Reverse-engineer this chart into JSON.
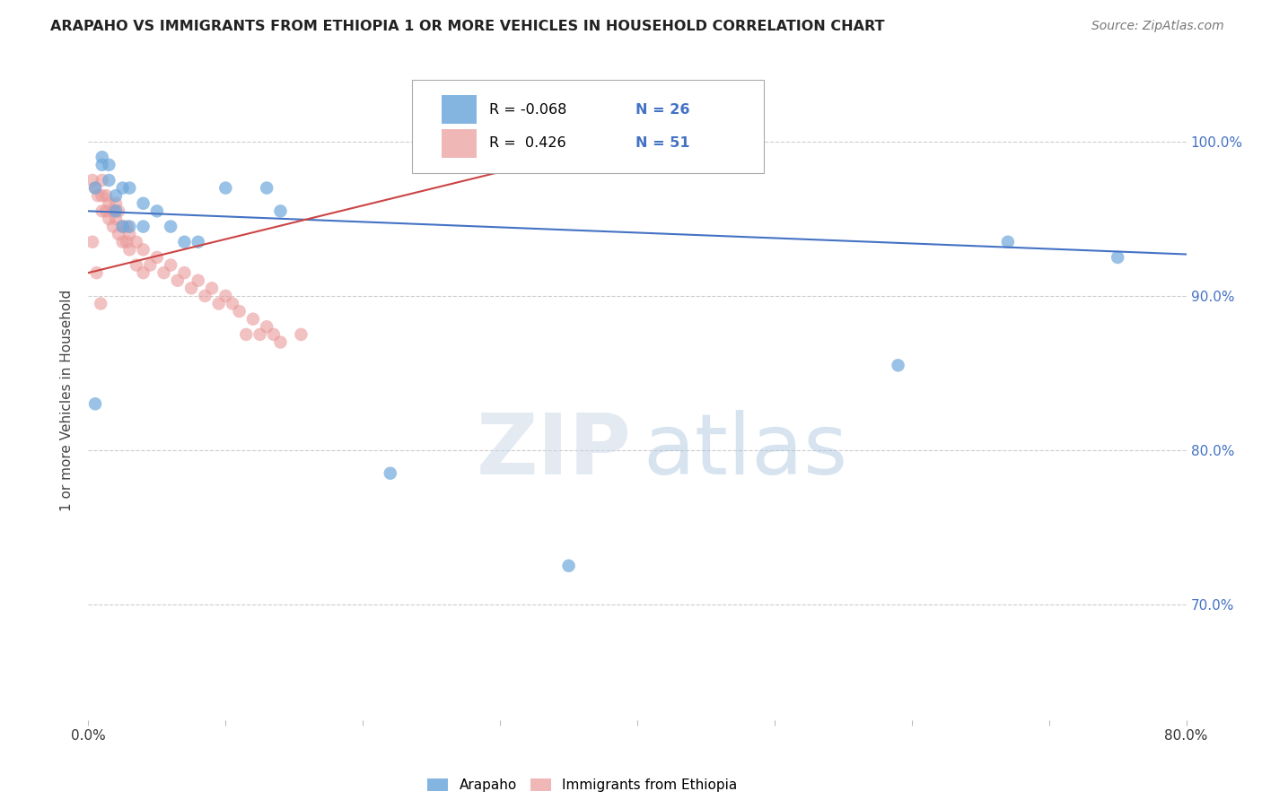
{
  "title": "ARAPAHO VS IMMIGRANTS FROM ETHIOPIA 1 OR MORE VEHICLES IN HOUSEHOLD CORRELATION CHART",
  "source": "Source: ZipAtlas.com",
  "ylabel": "1 or more Vehicles in Household",
  "xlim": [
    0.0,
    0.8
  ],
  "ylim": [
    0.625,
    1.04
  ],
  "ytick_labels": [
    "70.0%",
    "80.0%",
    "90.0%",
    "100.0%"
  ],
  "ytick_vals": [
    0.7,
    0.8,
    0.9,
    1.0
  ],
  "xtick_vals": [
    0.0,
    0.1,
    0.2,
    0.3,
    0.4,
    0.5,
    0.6,
    0.7,
    0.8
  ],
  "legend_labels": [
    "Arapaho",
    "Immigrants from Ethiopia"
  ],
  "R_blue": -0.068,
  "N_blue": 26,
  "R_pink": 0.426,
  "N_pink": 51,
  "blue_color": "#6fa8dc",
  "pink_color": "#ea9999",
  "blue_line_color": "#4472c4",
  "pink_line_color": "#cc4444",
  "blue_scatter_x": [
    0.005,
    0.01,
    0.01,
    0.015,
    0.015,
    0.02,
    0.02,
    0.025,
    0.025,
    0.03,
    0.03,
    0.04,
    0.04,
    0.05,
    0.06,
    0.07,
    0.08,
    0.1,
    0.13,
    0.14,
    0.22,
    0.35,
    0.59,
    0.67,
    0.75,
    0.005
  ],
  "blue_scatter_y": [
    0.97,
    0.99,
    0.985,
    0.985,
    0.975,
    0.965,
    0.955,
    0.97,
    0.945,
    0.97,
    0.945,
    0.96,
    0.945,
    0.955,
    0.945,
    0.935,
    0.935,
    0.97,
    0.97,
    0.955,
    0.785,
    0.725,
    0.855,
    0.935,
    0.925,
    0.83
  ],
  "pink_scatter_x": [
    0.003,
    0.005,
    0.007,
    0.01,
    0.01,
    0.01,
    0.013,
    0.013,
    0.015,
    0.015,
    0.018,
    0.018,
    0.02,
    0.02,
    0.022,
    0.022,
    0.025,
    0.025,
    0.028,
    0.028,
    0.03,
    0.03,
    0.035,
    0.035,
    0.04,
    0.04,
    0.045,
    0.05,
    0.055,
    0.06,
    0.065,
    0.07,
    0.075,
    0.08,
    0.085,
    0.09,
    0.095,
    0.1,
    0.105,
    0.11,
    0.115,
    0.12,
    0.125,
    0.13,
    0.135,
    0.14,
    0.155,
    0.39,
    0.003,
    0.006,
    0.009
  ],
  "pink_scatter_y": [
    0.975,
    0.97,
    0.965,
    0.975,
    0.965,
    0.955,
    0.965,
    0.955,
    0.96,
    0.95,
    0.955,
    0.945,
    0.96,
    0.95,
    0.955,
    0.94,
    0.945,
    0.935,
    0.945,
    0.935,
    0.94,
    0.93,
    0.935,
    0.92,
    0.93,
    0.915,
    0.92,
    0.925,
    0.915,
    0.92,
    0.91,
    0.915,
    0.905,
    0.91,
    0.9,
    0.905,
    0.895,
    0.9,
    0.895,
    0.89,
    0.875,
    0.885,
    0.875,
    0.88,
    0.875,
    0.87,
    0.875,
    1.0,
    0.935,
    0.915,
    0.895
  ],
  "blue_line_x": [
    0.0,
    0.8
  ],
  "blue_line_y": [
    0.955,
    0.927
  ],
  "pink_line_x": [
    0.0,
    0.39
  ],
  "pink_line_y": [
    0.915,
    1.0
  ]
}
